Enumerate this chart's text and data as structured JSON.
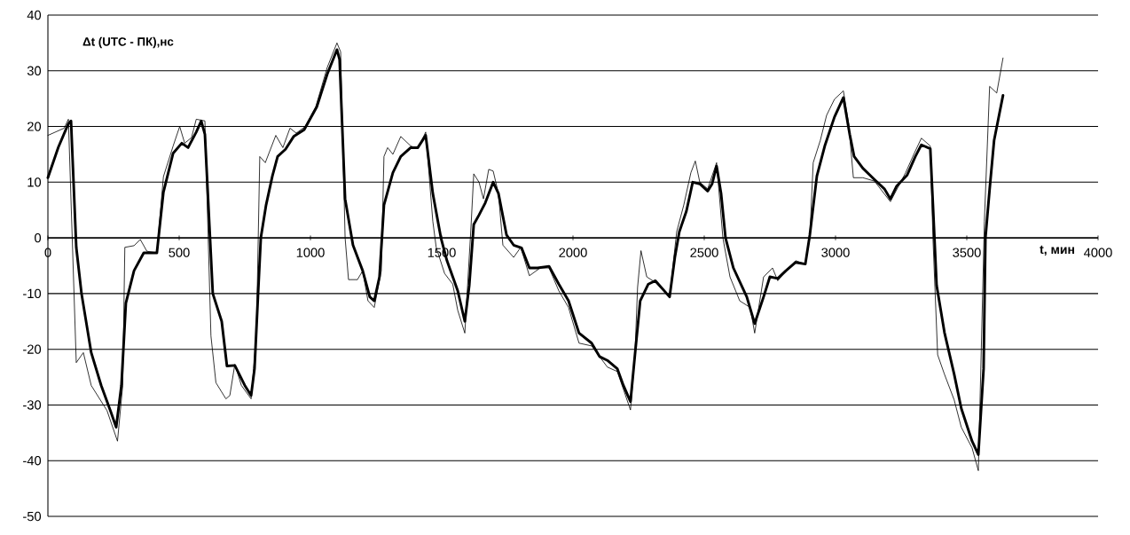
{
  "chart_data": {
    "type": "line",
    "ylabel": "Δt (UTC - ПК),нс",
    "xlabel": "t, мин",
    "xlim": [
      0,
      4000
    ],
    "xticks": [
      0,
      500,
      1000,
      1500,
      2000,
      2500,
      3000,
      3500,
      4000
    ],
    "ylim": [
      -50,
      40
    ],
    "yticks": [
      -50,
      -40,
      -30,
      -20,
      -10,
      0,
      10,
      20,
      30,
      40
    ],
    "grid": "y",
    "line_style": "solid",
    "series": [
      {
        "color": "#000000",
        "x": [
          0,
          62,
          78,
          108,
          135,
          165,
          225,
          265,
          285,
          293,
          328,
          352,
          377,
          415,
          440,
          477,
          502,
          521,
          547,
          565,
          598,
          621,
          640,
          678,
          693,
          712,
          737,
          774,
          794,
          807,
          828,
          868,
          895,
          922,
          946,
          980,
          1020,
          1064,
          1101,
          1115,
          1132,
          1145,
          1179,
          1199,
          1219,
          1243,
          1270,
          1280,
          1294,
          1314,
          1344,
          1382,
          1409,
          1439,
          1466,
          1479,
          1511,
          1542,
          1561,
          1588,
          1612,
          1622,
          1642,
          1659,
          1679,
          1696,
          1716,
          1733,
          1774,
          1801,
          1834,
          1875,
          1909,
          1946,
          1983,
          2023,
          2071,
          2101,
          2131,
          2169,
          2219,
          2236,
          2246,
          2259,
          2281,
          2314,
          2368,
          2395,
          2422,
          2449,
          2466,
          2483,
          2513,
          2547,
          2571,
          2598,
          2635,
          2675,
          2692,
          2726,
          2760,
          2780,
          2811,
          2848,
          2885,
          2902,
          2915,
          2942,
          2966,
          2996,
          3030,
          3050,
          3068,
          3104,
          3148,
          3209,
          3267,
          3300,
          3327,
          3361,
          3371,
          3389,
          3415,
          3452,
          3479,
          3520,
          3544,
          3567,
          3587,
          3614,
          3638
        ],
        "values": [
          18.4,
          19.7,
          21.3,
          -22.4,
          -20.6,
          -26.5,
          -31,
          -36.5,
          -26.5,
          -1.7,
          -1.4,
          -0.3,
          -2.4,
          -2.7,
          11,
          16.5,
          20,
          17,
          18,
          21.3,
          21,
          -17.6,
          -26,
          -28.9,
          -28.3,
          -22.7,
          -26.5,
          -28.9,
          -17.6,
          14.6,
          13.5,
          18.4,
          16.2,
          19.7,
          18.8,
          20,
          23.5,
          30.6,
          35,
          33.4,
          0,
          -7.5,
          -7.5,
          -5.9,
          -11.3,
          -12.5,
          -5.9,
          14.6,
          16.2,
          15,
          18.2,
          16.5,
          16,
          19,
          3,
          -1.7,
          -6.4,
          -8.3,
          -13,
          -17.1,
          2.4,
          11.5,
          10,
          7,
          12.3,
          12,
          8,
          -1.3,
          -3.5,
          -1.7,
          -6.8,
          -5.4,
          -5.4,
          -9.5,
          -12.5,
          -18.9,
          -19.4,
          -21.3,
          -23.2,
          -24,
          -30.9,
          -21,
          -8.9,
          -2.3,
          -7,
          -8,
          -10.6,
          1.1,
          5.9,
          11.7,
          13.8,
          10,
          8.8,
          13.5,
          0,
          -7,
          -11.3,
          -12.5,
          -17.1,
          -7,
          -5.4,
          -7.7,
          -5.9,
          -4.1,
          -4.7,
          0,
          13.5,
          17.5,
          22,
          24.9,
          26.4,
          20.5,
          10.8,
          10.8,
          10.2,
          6.5,
          11.7,
          15.2,
          17.9,
          16.5,
          0,
          -21,
          -24.5,
          -29.1,
          -34,
          -37.7,
          -41.8,
          3,
          27.2,
          26,
          32.3
        ]
      },
      {
        "color": "#000000",
        "x": [
          0,
          40,
          78,
          88,
          108,
          128,
          165,
          203,
          240,
          260,
          280,
          297,
          328,
          365,
          415,
          440,
          477,
          510,
          534,
          565,
          584,
          598,
          628,
          662,
          682,
          712,
          750,
          774,
          787,
          800,
          811,
          831,
          855,
          875,
          905,
          936,
          976,
          1024,
          1064,
          1101,
          1111,
          1132,
          1162,
          1199,
          1226,
          1243,
          1263,
          1280,
          1314,
          1344,
          1382,
          1409,
          1439,
          1466,
          1497,
          1520,
          1561,
          1588,
          1605,
          1622,
          1642,
          1666,
          1696,
          1716,
          1747,
          1774,
          1804,
          1834,
          1865,
          1909,
          1946,
          1983,
          2023,
          2071,
          2101,
          2131,
          2169,
          2192,
          2219,
          2236,
          2256,
          2287,
          2314,
          2368,
          2388,
          2405,
          2432,
          2456,
          2483,
          2513,
          2530,
          2547,
          2564,
          2581,
          2611,
          2662,
          2692,
          2726,
          2750,
          2780,
          2811,
          2848,
          2885,
          2902,
          2929,
          2959,
          2996,
          3030,
          3054,
          3071,
          3104,
          3148,
          3186,
          3209,
          3233,
          3273,
          3304,
          3327,
          3361,
          3371,
          3385,
          3415,
          3452,
          3479,
          3520,
          3544,
          3564,
          3571,
          3587,
          3604,
          3638
        ],
        "values": [
          10.8,
          16.3,
          20.5,
          21,
          -1.7,
          -10,
          -20.6,
          -26.5,
          -31.3,
          -34,
          -26.5,
          -11.7,
          -5.9,
          -2.7,
          -2.7,
          8.2,
          15.2,
          17,
          16.2,
          19,
          21,
          18.6,
          -10,
          -15,
          -23,
          -22.9,
          -26.5,
          -28.3,
          -23.5,
          -10.6,
          0,
          5.9,
          11.1,
          14.6,
          15.9,
          18.2,
          19.4,
          23.5,
          29.4,
          33.8,
          32,
          7,
          -1.3,
          -5.9,
          -10.6,
          -11.3,
          -7,
          5.9,
          11.7,
          14.6,
          16.2,
          16.2,
          18.4,
          8,
          0,
          -4.1,
          -9.5,
          -15,
          -8.5,
          2.4,
          4.1,
          6.3,
          10,
          8,
          0.5,
          -1.3,
          -1.8,
          -5.4,
          -5.4,
          -5.1,
          -8.3,
          -11.3,
          -17.1,
          -18.9,
          -21.3,
          -22,
          -23.5,
          -26.5,
          -29.4,
          -21,
          -11.3,
          -8.3,
          -7.7,
          -10.6,
          -3.5,
          1.1,
          4.8,
          10,
          9.7,
          8.4,
          9.7,
          12.9,
          8,
          0,
          -5.4,
          -10.6,
          -15.4,
          -10.6,
          -7,
          -7.3,
          -5.9,
          -4.4,
          -4.7,
          0.5,
          11.1,
          16.5,
          21.7,
          25.2,
          18.6,
          14.6,
          12.5,
          10.5,
          8.8,
          7,
          9.3,
          11.3,
          14.6,
          16.7,
          16,
          6,
          -8.5,
          -17,
          -24.5,
          -30.6,
          -36.5,
          -38.9,
          -23.5,
          0,
          8.7,
          17.5,
          25.6
        ]
      }
    ]
  }
}
